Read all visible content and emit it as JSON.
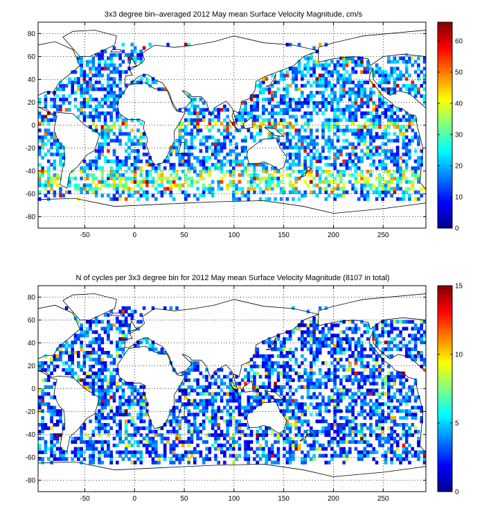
{
  "maps": [
    {
      "title": "3x3 degree bin–averaged 2012 May mean Surface Velocity Magnitude, cm/s",
      "x_range": [
        -97,
        293
      ],
      "y_range": [
        -90,
        90
      ],
      "x_ticks": [
        -50,
        0,
        50,
        100,
        150,
        200,
        250
      ],
      "y_ticks": [
        -80,
        -60,
        -40,
        -20,
        0,
        20,
        40,
        60,
        80
      ],
      "colorbar_ticks": [
        0,
        10,
        20,
        30,
        40,
        50,
        60
      ],
      "color_range": [
        0,
        66
      ],
      "bin_degrees": 3,
      "palette": "jet"
    },
    {
      "title": "N of cycles per 3x3 degree bin for 2012 May mean Surface Velocity Magnitude (8107 in total)",
      "x_range": [
        -97,
        293
      ],
      "y_range": [
        -90,
        90
      ],
      "x_ticks": [
        -50,
        0,
        50,
        100,
        150,
        200,
        250
      ],
      "y_ticks": [
        -80,
        -60,
        -40,
        -20,
        0,
        20,
        40,
        60,
        80
      ],
      "colorbar_ticks": [
        0,
        5,
        10,
        15
      ],
      "color_range": [
        0,
        15
      ],
      "bin_degrees": 3,
      "palette": "jet"
    }
  ]
}
